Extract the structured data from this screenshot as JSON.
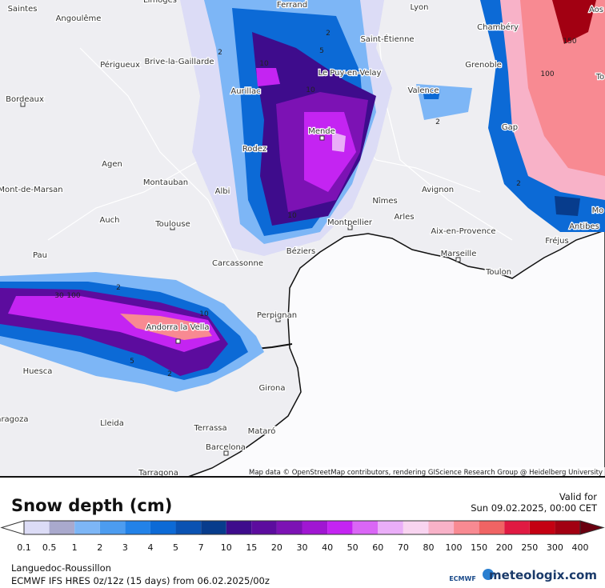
{
  "map": {
    "cities": [
      "Saintes",
      "Angoulême",
      "Limoges",
      "Ferrand",
      "Lyon",
      "Aos",
      "Chambéry",
      "Saint-Étienne",
      "Périgueux",
      "Brive-la-Gaillarde",
      "Grenoble",
      "Le Puy-en-Velay",
      "Bordeaux",
      "Aurillac",
      "Valence",
      "To",
      "Gap",
      "Mende",
      "Rodez",
      "Agen",
      "Mont-de-Marsan",
      "Montauban",
      "Albi",
      "Nîmes",
      "Avignon",
      "Arles",
      "Mo",
      "Auch",
      "Toulouse",
      "Montpellier",
      "Aix-en-Provence",
      "Fréjus",
      "Antibes",
      "Pau",
      "Carcassonne",
      "Béziers",
      "Marseille",
      "Toulon",
      "Perpignan",
      "Andorra la Vella",
      "Huesca",
      "Girona",
      "Zaragoza",
      "Lleida",
      "Terrassa",
      "Mataró",
      "Barcelona",
      "Tarragona"
    ],
    "contour_labels": [
      2,
      2,
      10,
      5,
      10,
      2,
      10,
      2,
      30,
      100,
      10,
      5,
      2,
      150,
      100,
      2
    ],
    "attribution": "Map data © OpenStreetMap contributors, rendering GIScience Research Group @ Heidelberg University"
  },
  "legend": {
    "title": "Snow depth (cm)",
    "valid_label": "Valid for",
    "valid_time": "Sun 09.02.2025, 00:00 CET",
    "values": [
      0.1,
      0.5,
      1,
      2,
      3,
      4,
      5,
      7,
      10,
      15,
      20,
      30,
      40,
      50,
      60,
      70,
      80,
      100,
      150,
      200,
      250,
      300,
      400
    ],
    "under_color": "#ffffff",
    "colors": [
      "#dcdcf6",
      "#a9a9cd",
      "#7db6f6",
      "#4c9cf0",
      "#2282e8",
      "#0c6ad6",
      "#0a52b2",
      "#073c8c",
      "#3e0c8c",
      "#5c0c9e",
      "#7c12b4",
      "#a016d2",
      "#c424f2",
      "#da66f6",
      "#eaaef8",
      "#f8d4f0",
      "#f8b2c8",
      "#f88a92",
      "#f06464",
      "#e01a42",
      "#c40012",
      "#a20012"
    ],
    "over_color": "#6a0010"
  },
  "footer": {
    "region": "Languedoc-Roussillon",
    "model": "ECMWF IFS HRES 0z/12z (15 days) from 06.02.2025/00z",
    "logo_left": "ECMWF",
    "logo_right": "meteologix.com"
  }
}
